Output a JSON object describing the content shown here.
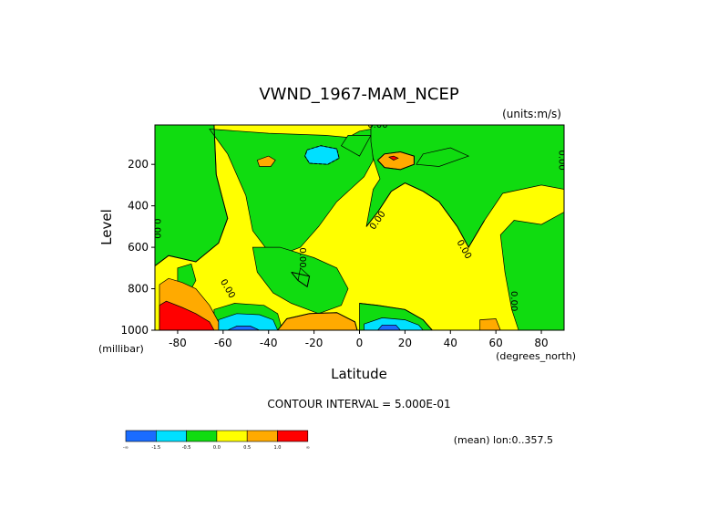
{
  "chart_data": {
    "type": "contour",
    "title": "VWND_1967-MAM_NCEP",
    "units_label": "(units:m/s)",
    "xlabel": "Latitude",
    "xunit_label": "(degrees_north)",
    "ylabel": "Level",
    "yunit_label": "(millibar)",
    "xlim": [
      -90,
      90
    ],
    "ylim": [
      1000,
      10
    ],
    "x_ticks": [
      -80,
      -60,
      -40,
      -20,
      0,
      20,
      40,
      60,
      80
    ],
    "y_ticks": [
      200,
      400,
      600,
      800,
      1000
    ],
    "contour_interval_text": "CONTOUR INTERVAL = 5.000E-01",
    "footer_text": "(mean) lon:0..357.5",
    "colorbar": {
      "colors": [
        "#1a6cff",
        "#00e0ff",
        "#10dc10",
        "#ffff00",
        "#ffaa00",
        "#ff0000"
      ],
      "labels": [
        "-∞",
        "-1.5",
        "-0.5",
        "0.0",
        "0.5",
        "1.0",
        "∞"
      ]
    },
    "contour_labels": [
      {
        "text": "0.00",
        "lat": 8,
        "level": 10,
        "rotate": 0
      },
      {
        "text": "0.00",
        "lat": 89,
        "level": 180,
        "rotate": 90
      },
      {
        "text": "0.00",
        "lat": -89,
        "level": 510,
        "rotate": 90
      },
      {
        "text": "0.00",
        "lat": 8,
        "level": 470,
        "rotate": -55
      },
      {
        "text": "0.00",
        "lat": -25,
        "level": 650,
        "rotate": 90
      },
      {
        "text": "0.00",
        "lat": -58,
        "level": 800,
        "rotate": 60
      },
      {
        "text": "0.00",
        "lat": 46,
        "level": 610,
        "rotate": 60
      },
      {
        "text": "0.00",
        "lat": 68,
        "level": 860,
        "rotate": 90
      }
    ],
    "regions": [
      {
        "value": 0.3,
        "color": "#ffff00",
        "points": [
          [
            -90,
            10
          ],
          [
            90,
            10
          ],
          [
            90,
            1000
          ],
          [
            -90,
            1000
          ]
        ]
      },
      {
        "value": -0.25,
        "color": "#10dc10",
        "points": [
          [
            -90,
            10
          ],
          [
            -64,
            10
          ],
          [
            -63,
            250
          ],
          [
            -58,
            460
          ],
          [
            -62,
            580
          ],
          [
            -72,
            670
          ],
          [
            -84,
            640
          ],
          [
            -90,
            690
          ]
        ]
      },
      {
        "value": -0.25,
        "color": "#10dc10",
        "points": [
          [
            -66,
            30
          ],
          [
            -40,
            50
          ],
          [
            -15,
            60
          ],
          [
            -5,
            70
          ],
          [
            0,
            40
          ],
          [
            5,
            30
          ],
          [
            6,
            180
          ],
          [
            2,
            260
          ],
          [
            -10,
            380
          ],
          [
            -18,
            500
          ],
          [
            -26,
            600
          ],
          [
            -38,
            650
          ],
          [
            -47,
            520
          ],
          [
            -50,
            350
          ],
          [
            -58,
            150
          ]
        ]
      },
      {
        "value": -0.25,
        "color": "#10dc10",
        "points": [
          [
            -5,
            60
          ],
          [
            5,
            60
          ],
          [
            0,
            160
          ],
          [
            -8,
            110
          ]
        ]
      },
      {
        "value": -0.25,
        "color": "#10dc10",
        "points": [
          [
            5,
            10
          ],
          [
            90,
            10
          ],
          [
            90,
            320
          ],
          [
            80,
            300
          ],
          [
            63,
            340
          ],
          [
            55,
            470
          ],
          [
            48,
            600
          ],
          [
            43,
            500
          ],
          [
            35,
            380
          ],
          [
            28,
            330
          ],
          [
            20,
            290
          ],
          [
            14,
            330
          ],
          [
            8,
            430
          ],
          [
            3,
            500
          ],
          [
            6,
            320
          ],
          [
            9,
            270
          ],
          [
            6,
            170
          ],
          [
            5,
            90
          ]
        ]
      },
      {
        "value": -0.25,
        "color": "#10dc10",
        "points": [
          [
            28,
            150
          ],
          [
            40,
            120
          ],
          [
            48,
            160
          ],
          [
            35,
            210
          ],
          [
            25,
            200
          ]
        ]
      },
      {
        "value": -0.25,
        "color": "#10dc10",
        "points": [
          [
            62,
            540
          ],
          [
            68,
            470
          ],
          [
            80,
            490
          ],
          [
            90,
            430
          ],
          [
            90,
            1000
          ],
          [
            70,
            1000
          ],
          [
            67,
            900
          ],
          [
            64,
            720
          ]
        ]
      },
      {
        "value": -0.25,
        "color": "#10dc10",
        "points": [
          [
            -47,
            600
          ],
          [
            -35,
            600
          ],
          [
            -20,
            650
          ],
          [
            -10,
            700
          ],
          [
            -5,
            800
          ],
          [
            -8,
            880
          ],
          [
            -18,
            920
          ],
          [
            -30,
            870
          ],
          [
            -38,
            820
          ],
          [
            -45,
            720
          ]
        ]
      },
      {
        "value": -0.25,
        "color": "#10dc10",
        "points": [
          [
            -26,
            700
          ],
          [
            -22,
            740
          ],
          [
            -23,
            790
          ],
          [
            -27,
            760
          ]
        ]
      },
      {
        "value": -0.25,
        "color": "#10dc10",
        "points": [
          [
            0,
            870
          ],
          [
            8,
            880
          ],
          [
            20,
            900
          ],
          [
            28,
            950
          ],
          [
            32,
            1000
          ],
          [
            0,
            1000
          ]
        ]
      },
      {
        "value": -0.25,
        "color": "#10dc10",
        "points": [
          [
            -64,
            900
          ],
          [
            -55,
            870
          ],
          [
            -42,
            880
          ],
          [
            -36,
            920
          ],
          [
            -34,
            1000
          ],
          [
            -64,
            1000
          ]
        ]
      },
      {
        "value": -0.25,
        "color": "#10dc10",
        "points": [
          [
            -80,
            700
          ],
          [
            -74,
            680
          ],
          [
            -72,
            760
          ],
          [
            -76,
            840
          ],
          [
            -80,
            880
          ]
        ]
      },
      {
        "value": -1.0,
        "color": "#00e0ff",
        "points": [
          [
            -23,
            130
          ],
          [
            -17,
            110
          ],
          [
            -10,
            125
          ],
          [
            -9,
            170
          ],
          [
            -14,
            200
          ],
          [
            -22,
            195
          ],
          [
            -24,
            160
          ]
        ]
      },
      {
        "value": -1.0,
        "color": "#00e0ff",
        "points": [
          [
            -62,
            950
          ],
          [
            -54,
            920
          ],
          [
            -44,
            925
          ],
          [
            -38,
            950
          ],
          [
            -36,
            1000
          ],
          [
            -62,
            1000
          ]
        ]
      },
      {
        "value": -1.0,
        "color": "#00e0ff",
        "points": [
          [
            2,
            970
          ],
          [
            10,
            940
          ],
          [
            20,
            950
          ],
          [
            26,
            975
          ],
          [
            28,
            1000
          ],
          [
            2,
            1000
          ]
        ]
      },
      {
        "value": -2.0,
        "color": "#1a6cff",
        "points": [
          [
            -58,
            1000
          ],
          [
            -54,
            980
          ],
          [
            -48,
            980
          ],
          [
            -44,
            1000
          ]
        ]
      },
      {
        "value": -2.0,
        "color": "#1a6cff",
        "points": [
          [
            8,
            1000
          ],
          [
            10,
            975
          ],
          [
            16,
            975
          ],
          [
            18,
            1000
          ]
        ]
      },
      {
        "value": 0.75,
        "color": "#ffaa00",
        "points": [
          [
            -45,
            180
          ],
          [
            -40,
            160
          ],
          [
            -37,
            180
          ],
          [
            -39,
            210
          ],
          [
            -44,
            210
          ]
        ]
      },
      {
        "value": 0.75,
        "color": "#ffaa00",
        "points": [
          [
            8,
            180
          ],
          [
            11,
            150
          ],
          [
            18,
            140
          ],
          [
            24,
            160
          ],
          [
            24,
            200
          ],
          [
            18,
            225
          ],
          [
            11,
            215
          ]
        ]
      },
      {
        "value": 0.75,
        "color": "#ffaa00",
        "points": [
          [
            -36,
            1000
          ],
          [
            -32,
            945
          ],
          [
            -22,
            920
          ],
          [
            -10,
            915
          ],
          [
            -2,
            960
          ],
          [
            -1,
            1000
          ]
        ]
      },
      {
        "value": 0.75,
        "color": "#ffaa00",
        "points": [
          [
            53,
            1000
          ],
          [
            53,
            950
          ],
          [
            60,
            945
          ],
          [
            62,
            1000
          ]
        ]
      },
      {
        "value": 0.75,
        "color": "#ffaa00",
        "points": [
          [
            -88,
            780
          ],
          [
            -84,
            750
          ],
          [
            -78,
            770
          ],
          [
            -72,
            800
          ],
          [
            -66,
            880
          ],
          [
            -62,
            960
          ],
          [
            -62,
            1000
          ],
          [
            -88,
            1000
          ]
        ]
      },
      {
        "value": 1.5,
        "color": "#ff0000",
        "points": [
          [
            -88,
            880
          ],
          [
            -85,
            860
          ],
          [
            -78,
            890
          ],
          [
            -72,
            920
          ],
          [
            -66,
            960
          ],
          [
            -64,
            1000
          ],
          [
            -88,
            1000
          ]
        ]
      },
      {
        "value": 1.5,
        "color": "#ff0000",
        "points": [
          [
            13,
            165
          ],
          [
            15,
            160
          ],
          [
            17,
            170
          ],
          [
            15,
            180
          ]
        ]
      }
    ],
    "contour_lines": [
      {
        "value": 0.0,
        "points": [
          [
            -64,
            10
          ],
          [
            -63,
            250
          ],
          [
            -58,
            460
          ],
          [
            -62,
            580
          ],
          [
            -72,
            670
          ],
          [
            -84,
            640
          ],
          [
            -90,
            690
          ]
        ]
      },
      {
        "value": 0.0,
        "points": [
          [
            -30,
            720
          ],
          [
            -22,
            740
          ],
          [
            -23,
            790
          ],
          [
            -27,
            760
          ],
          [
            -30,
            720
          ]
        ]
      },
      {
        "value": 0.0,
        "points": [
          [
            0,
            870
          ],
          [
            8,
            880
          ],
          [
            20,
            900
          ],
          [
            28,
            950
          ],
          [
            32,
            1000
          ]
        ]
      },
      {
        "value": 0.0,
        "points": [
          [
            55,
            470
          ],
          [
            48,
            600
          ],
          [
            43,
            500
          ],
          [
            35,
            380
          ],
          [
            28,
            330
          ],
          [
            20,
            290
          ],
          [
            14,
            330
          ],
          [
            8,
            430
          ],
          [
            3,
            500
          ]
        ]
      },
      {
        "value": -1.0,
        "points": [
          [
            -23,
            130
          ],
          [
            -17,
            110
          ],
          [
            -10,
            125
          ],
          [
            -9,
            170
          ],
          [
            -14,
            200
          ],
          [
            -22,
            195
          ],
          [
            -24,
            160
          ],
          [
            -23,
            130
          ]
        ]
      },
      {
        "value": 1.0,
        "points": [
          [
            8,
            180
          ],
          [
            11,
            150
          ],
          [
            18,
            140
          ],
          [
            24,
            160
          ],
          [
            24,
            200
          ],
          [
            18,
            225
          ],
          [
            11,
            215
          ],
          [
            8,
            180
          ]
        ]
      },
      {
        "value": 1.0,
        "points": [
          [
            -36,
            1000
          ],
          [
            -32,
            945
          ],
          [
            -22,
            920
          ],
          [
            -10,
            915
          ],
          [
            -2,
            960
          ],
          [
            -1,
            1000
          ]
        ]
      }
    ]
  }
}
